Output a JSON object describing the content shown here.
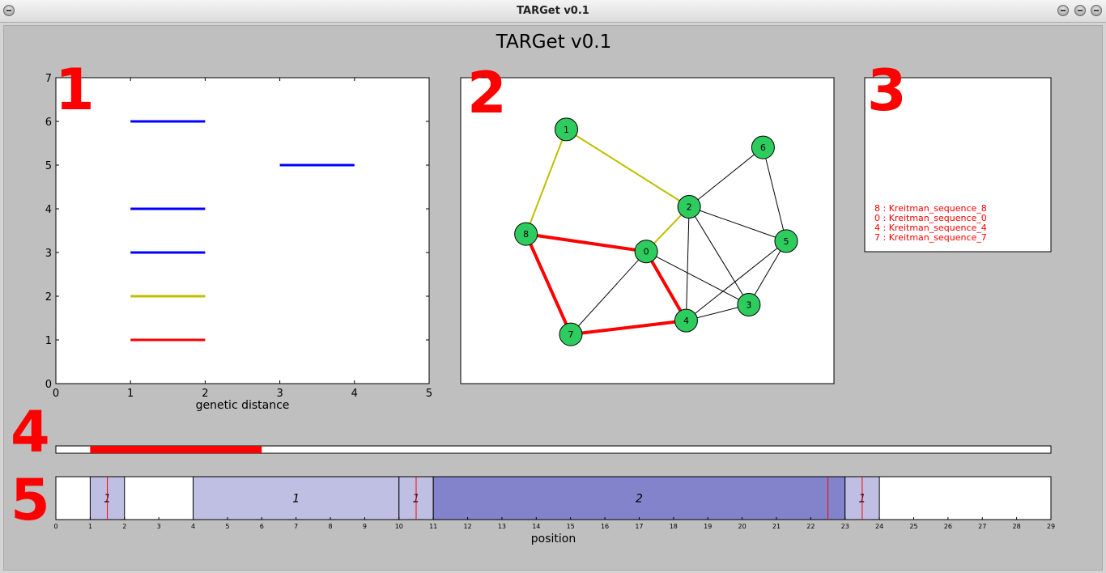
{
  "window": {
    "title": "TARGet v0.1"
  },
  "figure": {
    "title": "TARGet v0.1",
    "panel_numbers": [
      "1",
      "2",
      "3",
      "4",
      "5"
    ]
  },
  "chart_data": [
    {
      "type": "segments",
      "panel": "1",
      "xlabel": "genetic distance",
      "ylabel": "",
      "xlim": [
        0,
        5
      ],
      "ylim": [
        0,
        7
      ],
      "xticks": [
        0,
        1,
        2,
        3,
        4,
        5
      ],
      "yticks": [
        0,
        1,
        2,
        3,
        4,
        5,
        6,
        7
      ],
      "segments": [
        {
          "x0": 1,
          "x1": 2,
          "y": 6,
          "color": "#0000ff"
        },
        {
          "x0": 3,
          "x1": 4,
          "y": 5,
          "color": "#0000ff"
        },
        {
          "x0": 1,
          "x1": 2,
          "y": 4,
          "color": "#0000ff"
        },
        {
          "x0": 1,
          "x1": 2,
          "y": 3,
          "color": "#0000ff"
        },
        {
          "x0": 1,
          "x1": 2,
          "y": 2,
          "color": "#bfbf00"
        },
        {
          "x0": 1,
          "x1": 2,
          "y": 1,
          "color": "#ff0000"
        }
      ]
    },
    {
      "type": "network",
      "panel": "2",
      "node_color": "#2ecc5f",
      "nodes": [
        {
          "id": "0",
          "x": 0.497,
          "y": 0.432
        },
        {
          "id": "1",
          "x": 0.283,
          "y": 0.831
        },
        {
          "id": "2",
          "x": 0.612,
          "y": 0.578
        },
        {
          "id": "3",
          "x": 0.772,
          "y": 0.258
        },
        {
          "id": "4",
          "x": 0.604,
          "y": 0.206
        },
        {
          "id": "5",
          "x": 0.872,
          "y": 0.466
        },
        {
          "id": "6",
          "x": 0.81,
          "y": 0.772
        },
        {
          "id": "7",
          "x": 0.295,
          "y": 0.161
        },
        {
          "id": "8",
          "x": 0.175,
          "y": 0.489
        }
      ],
      "edges": [
        {
          "a": "1",
          "b": "2",
          "color": "#bfbf00",
          "width": 2
        },
        {
          "a": "1",
          "b": "8",
          "color": "#bfbf00",
          "width": 2
        },
        {
          "a": "0",
          "b": "2",
          "color": "#bfbf00",
          "width": 2
        },
        {
          "a": "8",
          "b": "0",
          "color": "#ff0000",
          "width": 4
        },
        {
          "a": "8",
          "b": "7",
          "color": "#ff0000",
          "width": 4
        },
        {
          "a": "7",
          "b": "4",
          "color": "#ff0000",
          "width": 4
        },
        {
          "a": "0",
          "b": "4",
          "color": "#ff0000",
          "width": 4
        },
        {
          "a": "2",
          "b": "6",
          "color": "#000000",
          "width": 1
        },
        {
          "a": "2",
          "b": "5",
          "color": "#000000",
          "width": 1
        },
        {
          "a": "2",
          "b": "3",
          "color": "#000000",
          "width": 1
        },
        {
          "a": "2",
          "b": "4",
          "color": "#000000",
          "width": 1
        },
        {
          "a": "6",
          "b": "5",
          "color": "#000000",
          "width": 1
        },
        {
          "a": "5",
          "b": "3",
          "color": "#000000",
          "width": 1
        },
        {
          "a": "5",
          "b": "4",
          "color": "#000000",
          "width": 1
        },
        {
          "a": "0",
          "b": "3",
          "color": "#000000",
          "width": 1
        },
        {
          "a": "0",
          "b": "7",
          "color": "#000000",
          "width": 1
        },
        {
          "a": "4",
          "b": "3",
          "color": "#000000",
          "width": 1
        }
      ]
    },
    {
      "type": "text_list",
      "panel": "3",
      "color": "#ff0000",
      "lines": [
        "8 : Kreitman_sequence_8",
        "0 : Kreitman_sequence_0",
        "4 : Kreitman_sequence_4",
        "7 : Kreitman_sequence_7"
      ]
    },
    {
      "type": "range_bar",
      "panel": "4",
      "xlim": [
        0,
        29
      ],
      "selected": [
        1,
        6
      ],
      "color": "#ff0000"
    },
    {
      "type": "interval_track",
      "panel": "5",
      "xlabel": "position",
      "xlim": [
        0,
        29
      ],
      "xticks": [
        0,
        1,
        2,
        3,
        4,
        5,
        6,
        7,
        8,
        9,
        10,
        11,
        12,
        13,
        14,
        15,
        16,
        17,
        18,
        19,
        20,
        21,
        22,
        23,
        24,
        25,
        26,
        27,
        28,
        29
      ],
      "blocks": [
        {
          "start": 1,
          "end": 2,
          "label": "1",
          "color": "#bfbfe4"
        },
        {
          "start": 4,
          "end": 10,
          "label": "1",
          "color": "#bfbfe4"
        },
        {
          "start": 10,
          "end": 11,
          "label": "1",
          "color": "#bfbfe4"
        },
        {
          "start": 11,
          "end": 23,
          "label": "2",
          "color": "#8383cc"
        },
        {
          "start": 23,
          "end": 24,
          "label": "1",
          "color": "#bfbfe4"
        }
      ],
      "markers": [
        1.5,
        10.5,
        22.5,
        23.5
      ],
      "marker_color": "#ff0000"
    }
  ]
}
